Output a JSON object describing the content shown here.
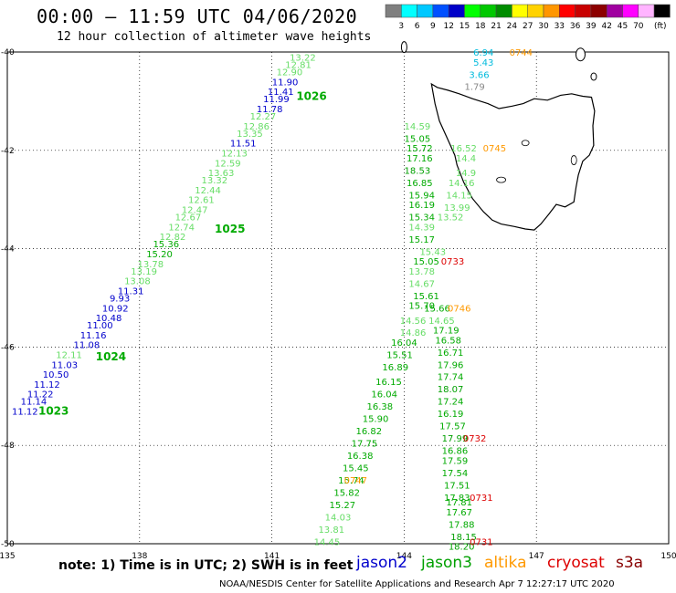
{
  "header": {
    "title": "00:00 – 11:59 UTC 04/06/2020",
    "subtitle": "12 hour collection of altimeter wave heights"
  },
  "legend": {
    "unit": "(ft)",
    "swatches": [
      {
        "color": "#7f7f7f",
        "label": ""
      },
      {
        "color": "#00ffff",
        "label": "3"
      },
      {
        "color": "#00c8ff",
        "label": "6"
      },
      {
        "color": "#0050ff",
        "label": "9"
      },
      {
        "color": "#0000c8",
        "label": "12"
      },
      {
        "color": "#00ff00",
        "label": "15"
      },
      {
        "color": "#00c800",
        "label": "18"
      },
      {
        "color": "#008c00",
        "label": "21"
      },
      {
        "color": "#ffff00",
        "label": "24"
      },
      {
        "color": "#ffd200",
        "label": "27"
      },
      {
        "color": "#ff9600",
        "label": "30"
      },
      {
        "color": "#ff0000",
        "label": "33"
      },
      {
        "color": "#c80000",
        "label": "36"
      },
      {
        "color": "#8c0000",
        "label": "39"
      },
      {
        "color": "#a000a0",
        "label": "42"
      },
      {
        "color": "#ff00ff",
        "label": "45"
      },
      {
        "color": "#ffb4ff",
        "label": "70"
      },
      {
        "color": "#000000",
        "label": ""
      }
    ]
  },
  "map": {
    "lon_ticks": [
      "135",
      "138",
      "141",
      "144",
      "147",
      "150"
    ],
    "lat_ticks": [
      "-40",
      "-42",
      "-44",
      "-46",
      "-48",
      "-50"
    ],
    "lon_range": [
      135,
      150
    ],
    "lat_range": [
      -50,
      -40
    ]
  },
  "colors": {
    "jason2": "#0000cc",
    "jason3": "#00a000",
    "altika": "#ff9900",
    "cryosat": "#dd0000",
    "s3a": "#880000",
    "light_green": "#66dd66",
    "green": "#00aa00",
    "cyan": "#00bbdd",
    "gray": "#888888"
  },
  "tracks": [
    {
      "lon": 141.7,
      "lat": -40.1,
      "text": "13.22",
      "color": "light_green"
    },
    {
      "lon": 141.6,
      "lat": -40.25,
      "text": "12.81",
      "color": "light_green"
    },
    {
      "lon": 141.4,
      "lat": -40.4,
      "text": "12.90",
      "color": "light_green"
    },
    {
      "lon": 141.3,
      "lat": -40.6,
      "text": "11.90",
      "color": "jason2"
    },
    {
      "lon": 141.2,
      "lat": -40.8,
      "text": "11.41",
      "color": "jason2"
    },
    {
      "lon": 141.1,
      "lat": -40.95,
      "text": "11.99",
      "color": "jason2"
    },
    {
      "lon": 140.95,
      "lat": -41.15,
      "text": "11.78",
      "color": "jason2"
    },
    {
      "lon": 140.8,
      "lat": -41.3,
      "text": "12.27",
      "color": "light_green"
    },
    {
      "lon": 140.65,
      "lat": -41.5,
      "text": "12.86",
      "color": "light_green"
    },
    {
      "lon": 140.5,
      "lat": -41.65,
      "text": "13.35",
      "color": "light_green"
    },
    {
      "lon": 140.35,
      "lat": -41.85,
      "text": "11.51",
      "color": "jason2"
    },
    {
      "lon": 140.15,
      "lat": -42.05,
      "text": "12.13",
      "color": "light_green"
    },
    {
      "lon": 140.0,
      "lat": -42.25,
      "text": "12.59",
      "color": "light_green"
    },
    {
      "lon": 139.85,
      "lat": -42.45,
      "text": "13.63",
      "color": "light_green"
    },
    {
      "lon": 139.7,
      "lat": -42.6,
      "text": "13.32",
      "color": "light_green"
    },
    {
      "lon": 139.55,
      "lat": -42.8,
      "text": "12.44",
      "color": "light_green"
    },
    {
      "lon": 139.4,
      "lat": -43.0,
      "text": "12.61",
      "color": "light_green"
    },
    {
      "lon": 139.25,
      "lat": -43.2,
      "text": "12.47",
      "color": "light_green"
    },
    {
      "lon": 139.1,
      "lat": -43.35,
      "text": "12.67",
      "color": "light_green"
    },
    {
      "lon": 138.95,
      "lat": -43.55,
      "text": "12.74",
      "color": "light_green"
    },
    {
      "lon": 138.75,
      "lat": -43.75,
      "text": "12.82",
      "color": "light_green"
    },
    {
      "lon": 138.6,
      "lat": -43.9,
      "text": "15.36",
      "color": "green"
    },
    {
      "lon": 138.45,
      "lat": -44.1,
      "text": "15.20",
      "color": "green"
    },
    {
      "lon": 138.25,
      "lat": -44.3,
      "text": "13.78",
      "color": "light_green"
    },
    {
      "lon": 138.1,
      "lat": -44.45,
      "text": "13.19",
      "color": "light_green"
    },
    {
      "lon": 137.95,
      "lat": -44.65,
      "text": "13.08",
      "color": "light_green"
    },
    {
      "lon": 137.8,
      "lat": -44.85,
      "text": "11.31",
      "color": "jason2"
    },
    {
      "lon": 137.55,
      "lat": -45.0,
      "text": "9.93",
      "color": "jason2"
    },
    {
      "lon": 137.45,
      "lat": -45.2,
      "text": "10.92",
      "color": "jason2"
    },
    {
      "lon": 137.3,
      "lat": -45.4,
      "text": "10.48",
      "color": "jason2"
    },
    {
      "lon": 137.1,
      "lat": -45.55,
      "text": "11.00",
      "color": "jason2"
    },
    {
      "lon": 136.95,
      "lat": -45.75,
      "text": "11.16",
      "color": "jason2"
    },
    {
      "lon": 136.8,
      "lat": -45.95,
      "text": "11.08",
      "color": "jason2"
    },
    {
      "lon": 136.4,
      "lat": -46.15,
      "text": "12.11",
      "color": "light_green"
    },
    {
      "lon": 136.3,
      "lat": -46.35,
      "text": "11.03",
      "color": "jason2"
    },
    {
      "lon": 136.1,
      "lat": -46.55,
      "text": "10.50",
      "color": "jason2"
    },
    {
      "lon": 135.9,
      "lat": -46.75,
      "text": "11.12",
      "color": "jason2"
    },
    {
      "lon": 135.75,
      "lat": -46.95,
      "text": "11.22",
      "color": "jason2"
    },
    {
      "lon": 135.6,
      "lat": -47.1,
      "text": "11.14",
      "color": "jason2"
    },
    {
      "lon": 135.4,
      "lat": -47.3,
      "text": "11.12",
      "color": "jason2"
    },
    {
      "lon": 141.9,
      "lat": -40.9,
      "text": "1026",
      "color": "green",
      "bold": true
    },
    {
      "lon": 140.05,
      "lat": -43.6,
      "text": "1025",
      "color": "green",
      "bold": true
    },
    {
      "lon": 137.35,
      "lat": -46.2,
      "text": "1024",
      "color": "green",
      "bold": true
    },
    {
      "lon": 136.05,
      "lat": -47.3,
      "text": "1023",
      "color": "green",
      "bold": true
    },
    {
      "lon": 145.8,
      "lat": -40.0,
      "text": "6.94",
      "color": "cyan"
    },
    {
      "lon": 145.8,
      "lat": -40.2,
      "text": "5.43",
      "color": "cyan"
    },
    {
      "lon": 145.7,
      "lat": -40.45,
      "text": "3.66",
      "color": "cyan"
    },
    {
      "lon": 145.6,
      "lat": -40.7,
      "text": "1.79",
      "color": "gray"
    },
    {
      "lon": 146.65,
      "lat": -40.0,
      "text": "0744",
      "color": "altika"
    },
    {
      "lon": 144.3,
      "lat": -41.5,
      "text": "14.59",
      "color": "light_green"
    },
    {
      "lon": 144.3,
      "lat": -41.75,
      "text": "15.05",
      "color": "green"
    },
    {
      "lon": 144.35,
      "lat": -41.95,
      "text": "15.72",
      "color": "green"
    },
    {
      "lon": 144.35,
      "lat": -42.15,
      "text": "17.16",
      "color": "green"
    },
    {
      "lon": 144.3,
      "lat": -42.4,
      "text": "18.53",
      "color": "jason3"
    },
    {
      "lon": 144.35,
      "lat": -42.65,
      "text": "16.85",
      "color": "green"
    },
    {
      "lon": 144.4,
      "lat": -42.9,
      "text": "15.94",
      "color": "green"
    },
    {
      "lon": 144.4,
      "lat": -43.1,
      "text": "16.19",
      "color": "green"
    },
    {
      "lon": 144.4,
      "lat": -43.35,
      "text": "15.34",
      "color": "green"
    },
    {
      "lon": 144.4,
      "lat": -43.55,
      "text": "14.39",
      "color": "light_green"
    },
    {
      "lon": 144.4,
      "lat": -43.8,
      "text": "15.17",
      "color": "green"
    },
    {
      "lon": 144.65,
      "lat": -44.05,
      "text": "15.43",
      "color": "light_green"
    },
    {
      "lon": 144.5,
      "lat": -44.25,
      "text": "15.05",
      "color": "green"
    },
    {
      "lon": 144.4,
      "lat": -44.45,
      "text": "13.78",
      "color": "light_green"
    },
    {
      "lon": 144.4,
      "lat": -44.7,
      "text": "14.67",
      "color": "light_green"
    },
    {
      "lon": 144.5,
      "lat": -44.95,
      "text": "15.61",
      "color": "green"
    },
    {
      "lon": 144.4,
      "lat": -45.15,
      "text": "15.70",
      "color": "green"
    },
    {
      "lon": 144.75,
      "lat": -45.2,
      "text": "15.66",
      "color": "green"
    },
    {
      "lon": 144.85,
      "lat": -45.45,
      "text": "14.65",
      "color": "light_green"
    },
    {
      "lon": 144.2,
      "lat": -45.45,
      "text": "14.56",
      "color": "light_green"
    },
    {
      "lon": 144.95,
      "lat": -45.65,
      "text": "17.19",
      "color": "green"
    },
    {
      "lon": 144.2,
      "lat": -45.7,
      "text": "14.86",
      "color": "light_green"
    },
    {
      "lon": 145.0,
      "lat": -45.85,
      "text": "16.58",
      "color": "green"
    },
    {
      "lon": 144.0,
      "lat": -45.9,
      "text": "16.04",
      "color": "green"
    },
    {
      "lon": 145.05,
      "lat": -46.1,
      "text": "16.71",
      "color": "green"
    },
    {
      "lon": 143.9,
      "lat": -46.15,
      "text": "15.51",
      "color": "green"
    },
    {
      "lon": 145.05,
      "lat": -46.35,
      "text": "17.96",
      "color": "green"
    },
    {
      "lon": 143.8,
      "lat": -46.4,
      "text": "16.89",
      "color": "green"
    },
    {
      "lon": 145.05,
      "lat": -46.6,
      "text": "17.74",
      "color": "green"
    },
    {
      "lon": 143.65,
      "lat": -46.7,
      "text": "16.15",
      "color": "green"
    },
    {
      "lon": 145.05,
      "lat": -46.85,
      "text": "18.07",
      "color": "jason3"
    },
    {
      "lon": 143.55,
      "lat": -46.95,
      "text": "16.04",
      "color": "green"
    },
    {
      "lon": 145.05,
      "lat": -47.1,
      "text": "17.24",
      "color": "green"
    },
    {
      "lon": 143.45,
      "lat": -47.2,
      "text": "16.38",
      "color": "green"
    },
    {
      "lon": 145.05,
      "lat": -47.35,
      "text": "16.19",
      "color": "green"
    },
    {
      "lon": 143.35,
      "lat": -47.45,
      "text": "15.90",
      "color": "green"
    },
    {
      "lon": 145.1,
      "lat": -47.6,
      "text": "17.57",
      "color": "green"
    },
    {
      "lon": 143.2,
      "lat": -47.7,
      "text": "16.82",
      "color": "green"
    },
    {
      "lon": 145.15,
      "lat": -47.85,
      "text": "17.99",
      "color": "jason3"
    },
    {
      "lon": 143.1,
      "lat": -47.95,
      "text": "17.75",
      "color": "green"
    },
    {
      "lon": 145.15,
      "lat": -48.1,
      "text": "16.86",
      "color": "green"
    },
    {
      "lon": 143.0,
      "lat": -48.2,
      "text": "16.38",
      "color": "green"
    },
    {
      "lon": 145.15,
      "lat": -48.3,
      "text": "17.59",
      "color": "green"
    },
    {
      "lon": 142.9,
      "lat": -48.45,
      "text": "15.45",
      "color": "green"
    },
    {
      "lon": 145.15,
      "lat": -48.55,
      "text": "17.54",
      "color": "green"
    },
    {
      "lon": 142.8,
      "lat": -48.7,
      "text": "15.74",
      "color": "green"
    },
    {
      "lon": 145.2,
      "lat": -48.8,
      "text": "17.51",
      "color": "green"
    },
    {
      "lon": 142.7,
      "lat": -48.95,
      "text": "15.82",
      "color": "green"
    },
    {
      "lon": 145.2,
      "lat": -49.05,
      "text": "17.83",
      "color": "green"
    },
    {
      "lon": 142.6,
      "lat": -49.2,
      "text": "15.27",
      "color": "green"
    },
    {
      "lon": 145.25,
      "lat": -49.15,
      "text": "17.81",
      "color": "green"
    },
    {
      "lon": 142.5,
      "lat": -49.45,
      "text": "14.03",
      "color": "light_green"
    },
    {
      "lon": 145.25,
      "lat": -49.35,
      "text": "17.67",
      "color": "green"
    },
    {
      "lon": 142.35,
      "lat": -49.7,
      "text": "13.81",
      "color": "light_green"
    },
    {
      "lon": 145.3,
      "lat": -49.6,
      "text": "17.88",
      "color": "green"
    },
    {
      "lon": 142.25,
      "lat": -49.95,
      "text": "14.45",
      "color": "light_green"
    },
    {
      "lon": 145.35,
      "lat": -49.85,
      "text": "18.15",
      "color": "jason3"
    },
    {
      "lon": 145.3,
      "lat": -50.05,
      "text": "18.20",
      "color": "jason3"
    },
    {
      "lon": 145.35,
      "lat": -41.95,
      "text": "16.52",
      "color": "light_green"
    },
    {
      "lon": 145.4,
      "lat": -42.15,
      "text": "14.4",
      "color": "light_green"
    },
    {
      "lon": 145.4,
      "lat": -42.45,
      "text": "14.9",
      "color": "light_green"
    },
    {
      "lon": 145.3,
      "lat": -42.65,
      "text": "14.16",
      "color": "light_green"
    },
    {
      "lon": 145.25,
      "lat": -42.9,
      "text": "14.15",
      "color": "light_green"
    },
    {
      "lon": 145.2,
      "lat": -43.15,
      "text": "13.99",
      "color": "light_green"
    },
    {
      "lon": 145.05,
      "lat": -43.35,
      "text": "13.52",
      "color": "light_green"
    },
    {
      "lon": 146.05,
      "lat": -41.95,
      "text": "0745",
      "color": "altika"
    },
    {
      "lon": 145.1,
      "lat": -44.25,
      "text": "0733",
      "color": "cryosat"
    },
    {
      "lon": 145.25,
      "lat": -45.2,
      "text": "0746",
      "color": "altika"
    },
    {
      "lon": 145.6,
      "lat": -47.85,
      "text": "0732",
      "color": "cryosat"
    },
    {
      "lon": 142.9,
      "lat": -48.7,
      "text": "0747",
      "color": "altika"
    },
    {
      "lon": 145.75,
      "lat": -49.05,
      "text": "0731",
      "color": "cryosat"
    },
    {
      "lon": 145.75,
      "lat": -49.95,
      "text": "0731",
      "color": "cryosat"
    }
  ],
  "footer": {
    "note": "note:  1) Time is in UTC;  2) SWH is in feet",
    "sat_jason2": "jason2",
    "sat_jason3": "jason3",
    "sat_altika": "altika",
    "sat_cryosat": "cryosat",
    "sat_s3a": "s3a",
    "credit": "NOAA/NESDIS Center for Satellite Applications and Research     Apr  7 12:27:17 UTC 2020"
  }
}
